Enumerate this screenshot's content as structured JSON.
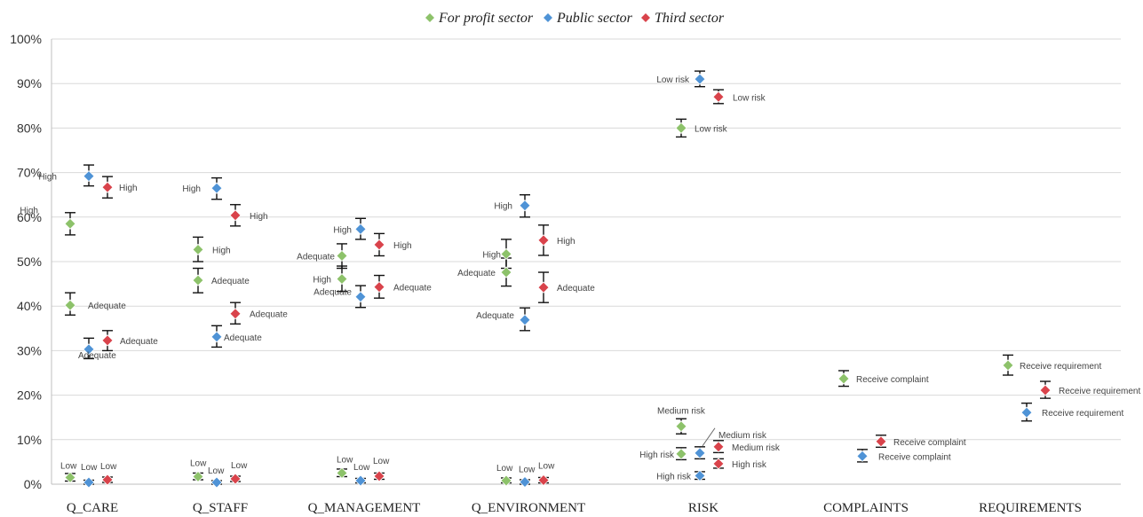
{
  "chart_data": {
    "type": "scatter",
    "categories": [
      "Q_CARE",
      "Q_STAFF",
      "Q_MANAGEMENT",
      "Q_ENVIRONMENT",
      "RISK",
      "COMPLAINTS",
      "REQUIREMENTS"
    ],
    "ylim": [
      0,
      100
    ],
    "yticks": [
      0,
      10,
      20,
      30,
      40,
      50,
      60,
      70,
      80,
      90,
      100
    ],
    "ytick_labels": [
      "0%",
      "10%",
      "20%",
      "30%",
      "40%",
      "50%",
      "60%",
      "70%",
      "80%",
      "90%",
      "100%"
    ],
    "grid": true,
    "legend_position": "top-center",
    "series": [
      {
        "name": "For profit sector",
        "color": "#8dc26a",
        "points": [
          {
            "category": "Q_CARE",
            "label": "High",
            "value": 58.5,
            "err_low": 56,
            "err_high": 61
          },
          {
            "category": "Q_CARE",
            "label": "Adequate",
            "value": 40.2,
            "err_low": 38,
            "err_high": 43
          },
          {
            "category": "Q_CARE",
            "label": "Low",
            "value": 1.5,
            "err_low": 0.7,
            "err_high": 2.4
          },
          {
            "category": "Q_STAFF",
            "label": "High",
            "value": 52.7,
            "err_low": 50,
            "err_high": 55.5
          },
          {
            "category": "Q_STAFF",
            "label": "Adequate",
            "value": 45.8,
            "err_low": 43,
            "err_high": 48.5
          },
          {
            "category": "Q_STAFF",
            "label": "Low",
            "value": 1.7,
            "err_low": 1,
            "err_high": 2.5
          },
          {
            "category": "Q_MANAGEMENT",
            "label": "Adequate",
            "value": 51.3,
            "err_low": 48.5,
            "err_high": 54
          },
          {
            "category": "Q_MANAGEMENT",
            "label": "High",
            "value": 46.1,
            "err_low": 43.3,
            "err_high": 49
          },
          {
            "category": "Q_MANAGEMENT",
            "label": "Low",
            "value": 2.5,
            "err_low": 1.7,
            "err_high": 3.4
          },
          {
            "category": "Q_ENVIRONMENT",
            "label": "High",
            "value": 51.7,
            "err_low": 48.5,
            "err_high": 55
          },
          {
            "category": "Q_ENVIRONMENT",
            "label": "Adequate",
            "value": 47.6,
            "err_low": 44.5,
            "err_high": 50.8
          },
          {
            "category": "Q_ENVIRONMENT",
            "label": "Low",
            "value": 0.8,
            "err_low": 0.3,
            "err_high": 1.4
          },
          {
            "category": "RISK",
            "label": "Low risk",
            "value": 80,
            "err_low": 78,
            "err_high": 82
          },
          {
            "category": "RISK",
            "label": "Medium risk",
            "value": 13,
            "err_low": 11.3,
            "err_high": 14.7
          },
          {
            "category": "RISK",
            "label": "High risk",
            "value": 6.8,
            "err_low": 5.5,
            "err_high": 8.2
          },
          {
            "category": "COMPLAINTS",
            "label": "Receive complaint",
            "value": 23.7,
            "err_low": 22,
            "err_high": 25.5
          },
          {
            "category": "REQUIREMENTS",
            "label": "Receive requirement",
            "value": 26.7,
            "err_low": 24.5,
            "err_high": 29
          }
        ]
      },
      {
        "name": "Public sector",
        "color": "#4f93d6",
        "points": [
          {
            "category": "Q_CARE",
            "label": "High",
            "value": 69.2,
            "err_low": 67,
            "err_high": 71.7
          },
          {
            "category": "Q_CARE",
            "label": "Adequate",
            "value": 30.3,
            "err_low": 28.2,
            "err_high": 32.8
          },
          {
            "category": "Q_CARE",
            "label": "Low",
            "value": 0.4,
            "err_low": 0,
            "err_high": 0.9
          },
          {
            "category": "Q_STAFF",
            "label": "High",
            "value": 66.5,
            "err_low": 64,
            "err_high": 68.8
          },
          {
            "category": "Q_STAFF",
            "label": "Adequate",
            "value": 33.1,
            "err_low": 30.8,
            "err_high": 35.6
          },
          {
            "category": "Q_STAFF",
            "label": "Low",
            "value": 0.4,
            "err_low": 0,
            "err_high": 0.8
          },
          {
            "category": "Q_MANAGEMENT",
            "label": "High",
            "value": 57.3,
            "err_low": 55,
            "err_high": 59.7
          },
          {
            "category": "Q_MANAGEMENT",
            "label": "Adequate",
            "value": 42.1,
            "err_low": 39.7,
            "err_high": 44.6
          },
          {
            "category": "Q_MANAGEMENT",
            "label": "Low",
            "value": 0.8,
            "err_low": 0.3,
            "err_high": 1.3
          },
          {
            "category": "Q_ENVIRONMENT",
            "label": "High",
            "value": 62.6,
            "err_low": 60,
            "err_high": 65
          },
          {
            "category": "Q_ENVIRONMENT",
            "label": "Adequate",
            "value": 36.9,
            "err_low": 34.5,
            "err_high": 39.6
          },
          {
            "category": "Q_ENVIRONMENT",
            "label": "Low",
            "value": 0.5,
            "err_low": 0,
            "err_high": 1
          },
          {
            "category": "RISK",
            "label": "Low risk",
            "value": 91,
            "err_low": 89.3,
            "err_high": 92.8
          },
          {
            "category": "RISK",
            "label": "Medium risk",
            "value": 7,
            "err_low": 5.7,
            "err_high": 8.4
          },
          {
            "category": "RISK",
            "label": "High risk",
            "value": 1.9,
            "err_low": 1.1,
            "err_high": 2.8
          },
          {
            "category": "COMPLAINTS",
            "label": "Receive complaint",
            "value": 6.3,
            "err_low": 5,
            "err_high": 7.8
          },
          {
            "category": "REQUIREMENTS",
            "label": "Receive requirement",
            "value": 16.1,
            "err_low": 14.2,
            "err_high": 18.2
          }
        ]
      },
      {
        "name": "Third sector",
        "color": "#d9434b",
        "points": [
          {
            "category": "Q_CARE",
            "label": "High",
            "value": 66.7,
            "err_low": 64.3,
            "err_high": 69.1
          },
          {
            "category": "Q_CARE",
            "label": "Adequate",
            "value": 32.3,
            "err_low": 30,
            "err_high": 34.5
          },
          {
            "category": "Q_CARE",
            "label": "Low",
            "value": 1,
            "err_low": 0.4,
            "err_high": 1.6
          },
          {
            "category": "Q_STAFF",
            "label": "High",
            "value": 60.4,
            "err_low": 58,
            "err_high": 62.8
          },
          {
            "category": "Q_STAFF",
            "label": "Adequate",
            "value": 38.3,
            "err_low": 36,
            "err_high": 40.8
          },
          {
            "category": "Q_STAFF",
            "label": "Low",
            "value": 1.2,
            "err_low": 0.6,
            "err_high": 1.8
          },
          {
            "category": "Q_MANAGEMENT",
            "label": "High",
            "value": 53.8,
            "err_low": 51.3,
            "err_high": 56.3
          },
          {
            "category": "Q_MANAGEMENT",
            "label": "Adequate",
            "value": 44.3,
            "err_low": 41.8,
            "err_high": 46.9
          },
          {
            "category": "Q_MANAGEMENT",
            "label": "Low",
            "value": 1.8,
            "err_low": 1.1,
            "err_high": 2.5
          },
          {
            "category": "Q_ENVIRONMENT",
            "label": "High",
            "value": 54.8,
            "err_low": 51.4,
            "err_high": 58.2
          },
          {
            "category": "Q_ENVIRONMENT",
            "label": "Adequate",
            "value": 44.2,
            "err_low": 40.8,
            "err_high": 47.6
          },
          {
            "category": "Q_ENVIRONMENT",
            "label": "Low",
            "value": 0.9,
            "err_low": 0.3,
            "err_high": 1.5
          },
          {
            "category": "RISK",
            "label": "Low risk",
            "value": 87,
            "err_low": 85.5,
            "err_high": 88.6
          },
          {
            "category": "RISK",
            "label": "Medium risk",
            "value": 8.4,
            "err_low": 7.1,
            "err_high": 9.8
          },
          {
            "category": "RISK",
            "label": "High risk",
            "value": 4.6,
            "err_low": 3.6,
            "err_high": 5.7
          },
          {
            "category": "COMPLAINTS",
            "label": "Receive complaint",
            "value": 9.6,
            "err_low": 8.3,
            "err_high": 11
          },
          {
            "category": "REQUIREMENTS",
            "label": "Receive requirement",
            "value": 21.1,
            "err_low": 19.3,
            "err_high": 23.1
          }
        ]
      }
    ]
  }
}
